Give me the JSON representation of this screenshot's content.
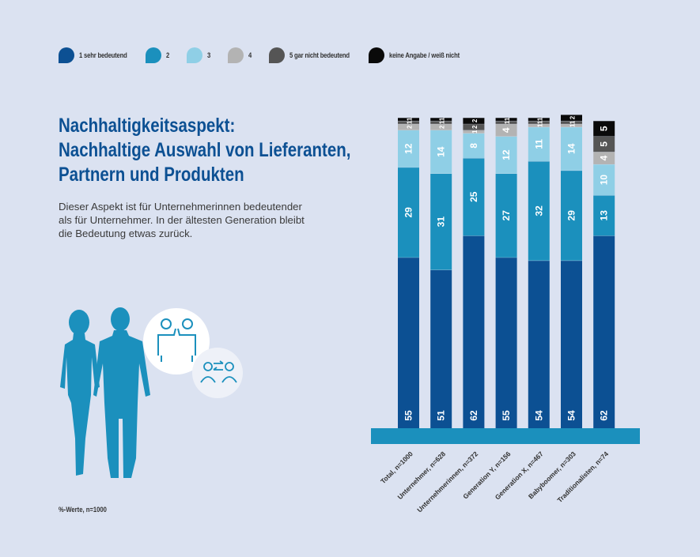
{
  "legend": [
    {
      "label": "1 sehr bedeutend",
      "color": "#0c5093"
    },
    {
      "label": "2",
      "color": "#1b90bd"
    },
    {
      "label": "3",
      "color": "#8fcfe6"
    },
    {
      "label": "4",
      "color": "#b3b3b3"
    },
    {
      "label": "5 gar nicht bedeutend",
      "color": "#555555"
    },
    {
      "label": "keine Angabe / weiß nicht",
      "color": "#0a0a0a"
    }
  ],
  "title_lines": [
    "Nachhaltigkeitsaspekt:",
    "Nachhaltige Auswahl von Lieferanten,",
    "Partnern und Produkten"
  ],
  "description_lines": [
    "Dieser Aspekt ist für Unternehmerinnen bedeutender",
    "als für Unternehmer. In der ältesten Generation bleibt",
    "die Bedeutung etwas zurück."
  ],
  "footnote": "%-Werte, n=1000",
  "chart_data": {
    "type": "bar",
    "stacked": true,
    "orientation": "vertical",
    "categories": [
      "Total, n=1000",
      "Unternehmer, n=628",
      "Unternehmerinnen, n=372",
      "Generation Y, n=156",
      "Generation X, n=467",
      "Babyboomer, n=303",
      "Traditionalisten, n=74"
    ],
    "series": [
      {
        "name": "1 sehr bedeutend",
        "color": "#0c5093",
        "values": [
          55,
          51,
          62,
          55,
          54,
          54,
          62
        ]
      },
      {
        "name": "2",
        "color": "#1b90bd",
        "values": [
          29,
          31,
          25,
          27,
          32,
          29,
          13
        ]
      },
      {
        "name": "3",
        "color": "#8fcfe6",
        "values": [
          12,
          14,
          8,
          12,
          11,
          14,
          10
        ]
      },
      {
        "name": "4",
        "color": "#b3b3b3",
        "values": [
          2,
          2,
          1,
          4,
          1,
          1,
          4
        ]
      },
      {
        "name": "5 gar nicht bedeutend",
        "color": "#555555",
        "values": [
          1,
          1,
          2,
          1,
          1,
          1,
          5
        ]
      },
      {
        "name": "keine Angabe / weiß nicht",
        "color": "#0a0a0a",
        "values": [
          1,
          1,
          2,
          1,
          1,
          2,
          5
        ]
      }
    ],
    "ylim": [
      0,
      100
    ],
    "legend_position": "top",
    "grid": false
  }
}
